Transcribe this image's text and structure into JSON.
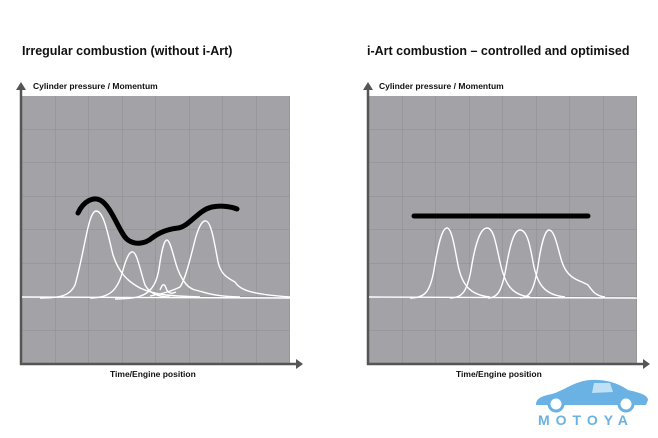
{
  "left_panel": {
    "title": "Irregular combustion (without i-Art)",
    "y_axis_label": "Cylinder pressure / Momentum",
    "x_axis_label": "Time/Engine position"
  },
  "right_panel": {
    "title": "i-Art combustion – controlled and optimised",
    "y_axis_label": "Cylinder pressure / Momentum",
    "x_axis_label": "Time/Engine position"
  },
  "watermark": {
    "text": "MOTOYA"
  },
  "colors": {
    "grid_bg": "#a3a3a7",
    "grid_line": "#8e8e92",
    "curve": "#ffffff",
    "momentum": "#000000",
    "brand": "#6ab2e4"
  }
}
